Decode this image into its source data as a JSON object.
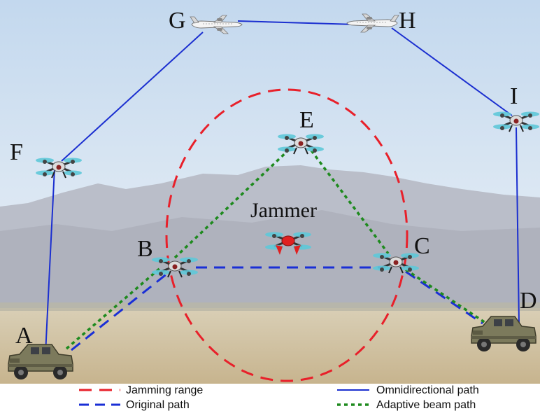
{
  "nodes": {
    "A": "A",
    "B": "B",
    "C": "C",
    "D": "D",
    "E": "E",
    "F": "F",
    "G": "G",
    "H": "H",
    "I": "I"
  },
  "jammer_label": "Jammer",
  "legend": {
    "jamming_range": "Jamming range",
    "original_path": "Original path",
    "omnidirectional_path": "Omnidirectional path",
    "adaptive_beam_path": "Adaptive beam path"
  },
  "colors": {
    "jamming_range": "#e8202a",
    "original_path": "#1a2fd6",
    "omnidirectional_path": "#1b2fd0",
    "adaptive_beam_path": "#1e8a1e",
    "sky_top": "#c9dcef",
    "field": "#cdbf9f"
  },
  "icons": {
    "drone": "quadcopter-drone-icon",
    "plane": "airplane-icon",
    "vehicle": "military-humvee-icon"
  }
}
